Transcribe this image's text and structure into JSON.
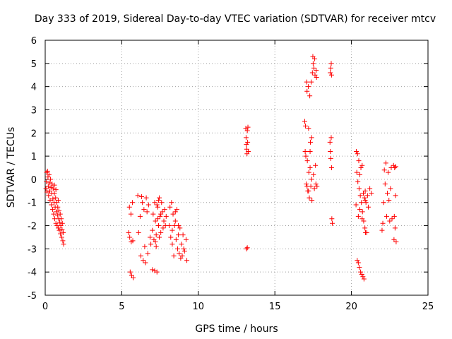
{
  "chart_data": {
    "type": "scatter",
    "title": "Day 333 of 2019, Sidereal Day-to-day VTEC variation (SDTVAR) for receiver mtcv",
    "xlabel": "GPS time / hours",
    "ylabel": "SDTVAR / TECUs",
    "xlim": [
      0,
      25
    ],
    "ylim": [
      -5,
      6
    ],
    "xticks": [
      "0",
      "5",
      "10",
      "15",
      "20",
      "25"
    ],
    "yticks": [
      "-5",
      "-4",
      "-3",
      "-2",
      "-1",
      "0",
      "1",
      "2",
      "3",
      "4",
      "5",
      "6"
    ],
    "grid": true,
    "marker": "+",
    "color": "#ff0000",
    "series": [
      {
        "name": "SDTVAR",
        "points": [
          [
            0.05,
            -0.4
          ],
          [
            0.08,
            -0.1
          ],
          [
            0.1,
            0.3
          ],
          [
            0.12,
            -0.55
          ],
          [
            0.15,
            0.35
          ],
          [
            0.18,
            0.1
          ],
          [
            0.2,
            -0.3
          ],
          [
            0.22,
            -0.7
          ],
          [
            0.25,
            0.2
          ],
          [
            0.28,
            -0.15
          ],
          [
            0.3,
            -0.5
          ],
          [
            0.32,
            -0.9
          ],
          [
            0.35,
            0.0
          ],
          [
            0.38,
            -0.35
          ],
          [
            0.4,
            -1.1
          ],
          [
            0.42,
            -0.6
          ],
          [
            0.45,
            -0.2
          ],
          [
            0.48,
            -1.3
          ],
          [
            0.5,
            -0.85
          ],
          [
            0.52,
            -0.4
          ],
          [
            0.55,
            -1.5
          ],
          [
            0.58,
            -1.0
          ],
          [
            0.6,
            -0.6
          ],
          [
            0.62,
            -1.7
          ],
          [
            0.65,
            -1.2
          ],
          [
            0.68,
            -0.8
          ],
          [
            0.7,
            -1.9
          ],
          [
            0.72,
            -1.4
          ],
          [
            0.75,
            -1.0
          ],
          [
            0.78,
            -2.0
          ],
          [
            0.8,
            -1.55
          ],
          [
            0.82,
            -1.2
          ],
          [
            0.85,
            -2.1
          ],
          [
            0.88,
            -1.7
          ],
          [
            0.9,
            -1.35
          ],
          [
            0.92,
            -2.2
          ],
          [
            0.95,
            -1.85
          ],
          [
            0.98,
            -1.5
          ],
          [
            1.0,
            -2.35
          ],
          [
            1.02,
            -2.0
          ],
          [
            1.05,
            -1.7
          ],
          [
            1.08,
            -2.5
          ],
          [
            1.1,
            -2.15
          ],
          [
            1.12,
            -1.9
          ],
          [
            1.15,
            -2.65
          ],
          [
            1.18,
            -2.3
          ],
          [
            1.2,
            -2.8
          ],
          [
            0.6,
            -0.25
          ],
          [
            0.7,
            -0.45
          ],
          [
            0.85,
            -0.9
          ],
          [
            5.45,
            -2.3
          ],
          [
            5.5,
            -1.2
          ],
          [
            5.52,
            -2.5
          ],
          [
            5.55,
            -4.0
          ],
          [
            5.6,
            -1.5
          ],
          [
            5.62,
            -2.7
          ],
          [
            5.65,
            -4.15
          ],
          [
            5.7,
            -1.0
          ],
          [
            5.72,
            -2.65
          ],
          [
            5.75,
            -4.25
          ],
          [
            6.05,
            -0.7
          ],
          [
            6.1,
            -2.3
          ],
          [
            6.2,
            -1.6
          ],
          [
            6.25,
            -3.3
          ],
          [
            6.3,
            -0.75
          ],
          [
            6.35,
            -1.0
          ],
          [
            6.4,
            -3.5
          ],
          [
            6.45,
            -1.3
          ],
          [
            6.5,
            -2.9
          ],
          [
            6.55,
            -3.6
          ],
          [
            6.6,
            -0.8
          ],
          [
            6.65,
            -1.4
          ],
          [
            6.7,
            -3.2
          ],
          [
            6.75,
            -1.1
          ],
          [
            7.0,
            -3.9
          ],
          [
            7.05,
            -1.5
          ],
          [
            7.1,
            -2.6
          ],
          [
            7.15,
            -3.95
          ],
          [
            7.2,
            -1.8
          ],
          [
            7.25,
            -2.4
          ],
          [
            7.3,
            -4.0
          ],
          [
            7.35,
            -1.2
          ],
          [
            7.4,
            -2.0
          ],
          [
            7.45,
            -0.8
          ],
          [
            7.5,
            -1.6
          ],
          [
            7.55,
            -2.3
          ],
          [
            7.6,
            -1.0
          ],
          [
            7.65,
            -1.4
          ],
          [
            7.7,
            -2.1
          ],
          [
            7.75,
            -1.8
          ],
          [
            7.8,
            -1.3
          ],
          [
            7.85,
            -2.0
          ],
          [
            7.9,
            -1.6
          ],
          [
            7.3,
            -1.1
          ],
          [
            7.2,
            -2.7
          ],
          [
            7.25,
            -2.9
          ],
          [
            7.35,
            -1.7
          ],
          [
            7.45,
            -2.5
          ],
          [
            7.55,
            -1.5
          ],
          [
            6.9,
            -2.8
          ],
          [
            6.85,
            -2.5
          ],
          [
            7.0,
            -2.2
          ],
          [
            7.15,
            -1.0
          ],
          [
            7.4,
            -0.9
          ],
          [
            8.1,
            -2.0
          ],
          [
            8.15,
            -1.2
          ],
          [
            8.2,
            -2.5
          ],
          [
            8.25,
            -1.0
          ],
          [
            8.3,
            -2.2
          ],
          [
            8.35,
            -1.5
          ],
          [
            8.4,
            -3.3
          ],
          [
            8.45,
            -2.0
          ],
          [
            8.5,
            -1.8
          ],
          [
            8.55,
            -2.6
          ],
          [
            8.6,
            -1.3
          ],
          [
            8.65,
            -3.0
          ],
          [
            8.7,
            -2.4
          ],
          [
            8.75,
            -3.2
          ],
          [
            8.8,
            -2.1
          ],
          [
            8.85,
            -3.4
          ],
          [
            8.9,
            -2.8
          ],
          [
            8.95,
            -3.3
          ],
          [
            9.0,
            -2.4
          ],
          [
            9.05,
            -3.0
          ],
          [
            9.2,
            -2.6
          ],
          [
            9.25,
            -3.5
          ],
          [
            8.3,
            -2.8
          ],
          [
            8.5,
            -1.4
          ],
          [
            8.7,
            -2.0
          ],
          [
            9.1,
            -3.1
          ],
          [
            13.1,
            2.2
          ],
          [
            13.12,
            1.8
          ],
          [
            13.14,
            1.5
          ],
          [
            13.16,
            1.3
          ],
          [
            13.18,
            1.1
          ],
          [
            13.2,
            2.1
          ],
          [
            13.22,
            1.6
          ],
          [
            13.24,
            2.25
          ],
          [
            13.26,
            1.2
          ],
          [
            13.15,
            -3.0
          ],
          [
            13.2,
            -2.95
          ],
          [
            16.95,
            2.5
          ],
          [
            16.98,
            1.2
          ],
          [
            17.0,
            2.3
          ],
          [
            17.02,
            1.0
          ],
          [
            17.05,
            -0.2
          ],
          [
            17.08,
            4.2
          ],
          [
            17.1,
            3.8
          ],
          [
            17.12,
            0.8
          ],
          [
            17.15,
            -0.5
          ],
          [
            17.18,
            4.0
          ],
          [
            17.2,
            2.2
          ],
          [
            17.22,
            0.3
          ],
          [
            17.25,
            -0.8
          ],
          [
            17.28,
            3.6
          ],
          [
            17.3,
            0.5
          ],
          [
            17.32,
            1.6
          ],
          [
            17.35,
            -0.3
          ],
          [
            17.38,
            4.2
          ],
          [
            17.4,
            0.0
          ],
          [
            17.42,
            -0.9
          ],
          [
            17.45,
            4.6
          ],
          [
            17.48,
            5.3
          ],
          [
            17.5,
            5.0
          ],
          [
            17.52,
            0.2
          ],
          [
            17.55,
            4.8
          ],
          [
            17.58,
            -0.4
          ],
          [
            17.6,
            5.2
          ],
          [
            17.62,
            4.5
          ],
          [
            17.65,
            0.6
          ],
          [
            17.68,
            -0.2
          ],
          [
            17.7,
            4.7
          ],
          [
            17.72,
            4.4
          ],
          [
            17.75,
            -0.3
          ],
          [
            17.2,
            -0.5
          ],
          [
            17.1,
            -0.3
          ],
          [
            17.3,
            1.2
          ],
          [
            17.4,
            1.8
          ],
          [
            18.6,
            1.6
          ],
          [
            18.62,
            1.2
          ],
          [
            18.65,
            0.9
          ],
          [
            18.68,
            1.8
          ],
          [
            18.7,
            0.5
          ],
          [
            18.72,
            -1.7
          ],
          [
            18.75,
            -1.9
          ],
          [
            18.62,
            4.6
          ],
          [
            18.65,
            4.8
          ],
          [
            18.68,
            5.0
          ],
          [
            18.7,
            4.5
          ],
          [
            20.3,
            -1.1
          ],
          [
            20.32,
            1.2
          ],
          [
            20.35,
            0.3
          ],
          [
            20.38,
            -3.5
          ],
          [
            20.4,
            1.1
          ],
          [
            20.42,
            -0.1
          ],
          [
            20.45,
            -3.6
          ],
          [
            20.48,
            0.8
          ],
          [
            20.5,
            -0.4
          ],
          [
            20.52,
            -3.8
          ],
          [
            20.55,
            0.2
          ],
          [
            20.58,
            -0.7
          ],
          [
            20.6,
            -4.0
          ],
          [
            20.62,
            0.5
          ],
          [
            20.65,
            -1.0
          ],
          [
            20.68,
            -4.1
          ],
          [
            20.7,
            0.6
          ],
          [
            20.72,
            -1.4
          ],
          [
            20.75,
            -4.2
          ],
          [
            20.78,
            -0.6
          ],
          [
            20.8,
            -1.8
          ],
          [
            20.82,
            -4.3
          ],
          [
            20.85,
            -0.8
          ],
          [
            20.88,
            -2.1
          ],
          [
            20.9,
            -0.9
          ],
          [
            20.92,
            -2.3
          ],
          [
            20.95,
            -1.0
          ],
          [
            21.0,
            -2.3
          ],
          [
            21.05,
            -0.7
          ],
          [
            21.1,
            -1.2
          ],
          [
            21.2,
            -0.4
          ],
          [
            21.3,
            -0.6
          ],
          [
            20.45,
            -1.6
          ],
          [
            20.55,
            -1.3
          ],
          [
            20.7,
            -1.7
          ],
          [
            20.9,
            -0.5
          ],
          [
            22.0,
            -2.2
          ],
          [
            22.05,
            -1.9
          ],
          [
            22.1,
            -1.0
          ],
          [
            22.15,
            0.4
          ],
          [
            22.2,
            -0.2
          ],
          [
            22.25,
            0.7
          ],
          [
            22.3,
            -1.6
          ],
          [
            22.35,
            -0.6
          ],
          [
            22.4,
            0.3
          ],
          [
            22.45,
            -0.9
          ],
          [
            22.5,
            -1.8
          ],
          [
            22.55,
            -0.4
          ],
          [
            22.6,
            0.5
          ],
          [
            22.65,
            -1.7
          ],
          [
            22.75,
            0.6
          ],
          [
            22.78,
            -2.6
          ],
          [
            22.8,
            -1.6
          ],
          [
            22.82,
            0.5
          ],
          [
            22.85,
            -2.1
          ],
          [
            22.88,
            -0.7
          ],
          [
            22.9,
            0.55
          ],
          [
            22.92,
            -2.7
          ]
        ]
      }
    ]
  }
}
